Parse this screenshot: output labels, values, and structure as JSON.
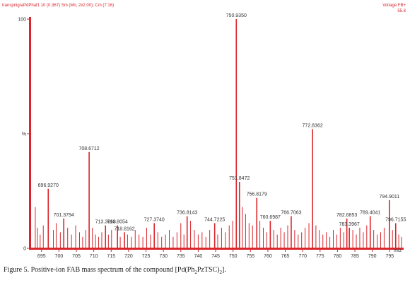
{
  "header": {
    "scan_info": "transpnigraPdPhaf1  10 (0.367) Sm (Mn, 2x2.00); Cm (7:16)",
    "mode": "Voltage FB+",
    "intensity_value": "55.8"
  },
  "caption": {
    "pre": "Figure 5. Positive-ion FAB mass spectrum of the compound [Pd(Ph",
    "sub1": "2",
    "mid": "PzTSC)",
    "sub2": "2",
    "post": "]."
  },
  "colors": {
    "frame": "#d9262c",
    "peaks": "#d9262c",
    "text": "#333333"
  },
  "chart_data": {
    "type": "bar",
    "xlabel": "m/z",
    "ylabel": "%",
    "xlim": [
      692.0,
      799.0
    ],
    "ylim": [
      0,
      100
    ],
    "x_ticks": [
      695,
      700,
      705,
      710,
      715,
      720,
      725,
      730,
      735,
      740,
      745,
      750,
      755,
      760,
      765,
      770,
      775,
      780,
      785,
      790,
      795
    ],
    "y_ticks": [
      {
        "value": 0,
        "label": "0"
      },
      {
        "value": 50,
        "label": "%"
      },
      {
        "value": 100,
        "label": "100"
      }
    ],
    "labeled_peaks": [
      {
        "mz": 696.927,
        "intensity": 26,
        "label": "696.9270"
      },
      {
        "mz": 701.3794,
        "intensity": 13,
        "label": "701.3794"
      },
      {
        "mz": 708.6712,
        "intensity": 42,
        "label": "708.6712"
      },
      {
        "mz": 713.3663,
        "intensity": 10,
        "label": "713.3663"
      },
      {
        "mz": 716.8054,
        "intensity": 10,
        "label": "716.8054"
      },
      {
        "mz": 718.8162,
        "intensity": 7,
        "label": "718.8162"
      },
      {
        "mz": 727.374,
        "intensity": 11,
        "label": "727.3740"
      },
      {
        "mz": 736.8143,
        "intensity": 14,
        "label": "736.8143"
      },
      {
        "mz": 744.7225,
        "intensity": 11,
        "label": "744.7225"
      },
      {
        "mz": 750.935,
        "intensity": 100,
        "label": "750.9350"
      },
      {
        "mz": 751.8472,
        "intensity": 29,
        "label": "751.8472"
      },
      {
        "mz": 756.8179,
        "intensity": 22,
        "label": "756.8179"
      },
      {
        "mz": 760.6987,
        "intensity": 12,
        "label": "760.6987"
      },
      {
        "mz": 766.7063,
        "intensity": 14,
        "label": "766.7063"
      },
      {
        "mz": 772.8362,
        "intensity": 52,
        "label": "772.8362"
      },
      {
        "mz": 782.6853,
        "intensity": 13,
        "label": "782.6853"
      },
      {
        "mz": 783.3967,
        "intensity": 9,
        "label": "783.3967"
      },
      {
        "mz": 789.4041,
        "intensity": 14,
        "label": "789.4041"
      },
      {
        "mz": 794.9011,
        "intensity": 21,
        "label": "794.9011"
      },
      {
        "mz": 796.7155,
        "intensity": 11,
        "label": "796.7155"
      }
    ],
    "minor_peaks": [
      {
        "mz": 693.2,
        "intensity": 18
      },
      {
        "mz": 693.8,
        "intensity": 9
      },
      {
        "mz": 694.6,
        "intensity": 6
      },
      {
        "mz": 695.5,
        "intensity": 10
      },
      {
        "mz": 698.4,
        "intensity": 8
      },
      {
        "mz": 699.2,
        "intensity": 11
      },
      {
        "mz": 700.4,
        "intensity": 7
      },
      {
        "mz": 702.5,
        "intensity": 9
      },
      {
        "mz": 703.6,
        "intensity": 6
      },
      {
        "mz": 704.8,
        "intensity": 10
      },
      {
        "mz": 705.9,
        "intensity": 7
      },
      {
        "mz": 706.8,
        "intensity": 5
      },
      {
        "mz": 707.7,
        "intensity": 8
      },
      {
        "mz": 709.6,
        "intensity": 9
      },
      {
        "mz": 710.5,
        "intensity": 6
      },
      {
        "mz": 711.4,
        "intensity": 5
      },
      {
        "mz": 712.3,
        "intensity": 7
      },
      {
        "mz": 714.2,
        "intensity": 6
      },
      {
        "mz": 715.1,
        "intensity": 8
      },
      {
        "mz": 717.6,
        "intensity": 5
      },
      {
        "mz": 719.7,
        "intensity": 6
      },
      {
        "mz": 720.8,
        "intensity": 5
      },
      {
        "mz": 721.9,
        "intensity": 8
      },
      {
        "mz": 723.0,
        "intensity": 6
      },
      {
        "mz": 724.1,
        "intensity": 5
      },
      {
        "mz": 725.2,
        "intensity": 9
      },
      {
        "mz": 726.3,
        "intensity": 6
      },
      {
        "mz": 728.4,
        "intensity": 7
      },
      {
        "mz": 729.5,
        "intensity": 5
      },
      {
        "mz": 730.6,
        "intensity": 6
      },
      {
        "mz": 731.7,
        "intensity": 8
      },
      {
        "mz": 732.8,
        "intensity": 5
      },
      {
        "mz": 733.9,
        "intensity": 7
      },
      {
        "mz": 735.0,
        "intensity": 11
      },
      {
        "mz": 735.9,
        "intensity": 6
      },
      {
        "mz": 737.8,
        "intensity": 12
      },
      {
        "mz": 738.9,
        "intensity": 8
      },
      {
        "mz": 740.0,
        "intensity": 6
      },
      {
        "mz": 741.1,
        "intensity": 7
      },
      {
        "mz": 742.2,
        "intensity": 5
      },
      {
        "mz": 743.3,
        "intensity": 8
      },
      {
        "mz": 745.6,
        "intensity": 6
      },
      {
        "mz": 746.7,
        "intensity": 9
      },
      {
        "mz": 747.8,
        "intensity": 7
      },
      {
        "mz": 748.9,
        "intensity": 10
      },
      {
        "mz": 749.9,
        "intensity": 12
      },
      {
        "mz": 752.7,
        "intensity": 18
      },
      {
        "mz": 753.6,
        "intensity": 15
      },
      {
        "mz": 754.6,
        "intensity": 11
      },
      {
        "mz": 755.6,
        "intensity": 10
      },
      {
        "mz": 757.7,
        "intensity": 12
      },
      {
        "mz": 758.7,
        "intensity": 9
      },
      {
        "mz": 759.7,
        "intensity": 7
      },
      {
        "mz": 761.7,
        "intensity": 8
      },
      {
        "mz": 762.7,
        "intensity": 6
      },
      {
        "mz": 763.7,
        "intensity": 9
      },
      {
        "mz": 764.7,
        "intensity": 7
      },
      {
        "mz": 765.7,
        "intensity": 10
      },
      {
        "mz": 767.7,
        "intensity": 8
      },
      {
        "mz": 768.7,
        "intensity": 6
      },
      {
        "mz": 769.7,
        "intensity": 7
      },
      {
        "mz": 770.7,
        "intensity": 9
      },
      {
        "mz": 771.8,
        "intensity": 11
      },
      {
        "mz": 773.8,
        "intensity": 10
      },
      {
        "mz": 774.8,
        "intensity": 8
      },
      {
        "mz": 775.8,
        "intensity": 6
      },
      {
        "mz": 776.8,
        "intensity": 7
      },
      {
        "mz": 777.8,
        "intensity": 5
      },
      {
        "mz": 778.8,
        "intensity": 8
      },
      {
        "mz": 779.8,
        "intensity": 6
      },
      {
        "mz": 780.8,
        "intensity": 9
      },
      {
        "mz": 781.8,
        "intensity": 7
      },
      {
        "mz": 784.4,
        "intensity": 8
      },
      {
        "mz": 785.4,
        "intensity": 6
      },
      {
        "mz": 786.4,
        "intensity": 9
      },
      {
        "mz": 787.4,
        "intensity": 7
      },
      {
        "mz": 788.4,
        "intensity": 10
      },
      {
        "mz": 790.4,
        "intensity": 8
      },
      {
        "mz": 791.4,
        "intensity": 6
      },
      {
        "mz": 792.4,
        "intensity": 7
      },
      {
        "mz": 793.4,
        "intensity": 9
      },
      {
        "mz": 795.8,
        "intensity": 8
      },
      {
        "mz": 797.6,
        "intensity": 6
      },
      {
        "mz": 798.4,
        "intensity": 5
      }
    ]
  }
}
